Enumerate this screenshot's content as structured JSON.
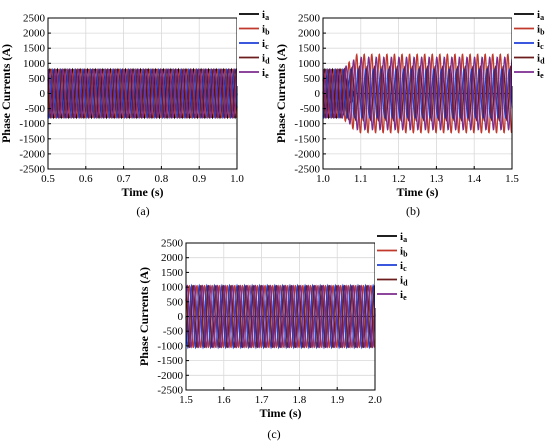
{
  "chart_data": [
    {
      "type": "line",
      "caption": "(a)",
      "xlabel": "Time (s)",
      "ylabel": "Phase Currents (A)",
      "xlim": [
        0.5,
        1.0
      ],
      "ylim": [
        -2500,
        2500
      ],
      "xticks": [
        "0.5",
        "0.6",
        "0.7",
        "0.8",
        "0.9",
        "1.0"
      ],
      "yticks": [
        "2500",
        "2000",
        "1500",
        "1000",
        "500",
        "0",
        "-500",
        "-1000",
        "-1500",
        "-2000",
        "-2500"
      ],
      "grid": true,
      "legend_position": "right",
      "frequency_hz": 50,
      "series": [
        {
          "name": "a",
          "color": "#000000",
          "amplitude": 800,
          "phase_deg": 0
        },
        {
          "name": "b",
          "color": "#c0392b",
          "amplitude": 800,
          "phase_deg": -72
        },
        {
          "name": "c",
          "color": "#1f3fd8",
          "amplitude": 800,
          "phase_deg": -144
        },
        {
          "name": "d",
          "color": "#6b1d1d",
          "amplitude": 800,
          "phase_deg": -216
        },
        {
          "name": "e",
          "color": "#7b2d8e",
          "amplitude": 800,
          "phase_deg": -288
        }
      ]
    },
    {
      "type": "line",
      "caption": "(b)",
      "xlabel": "Time (s)",
      "ylabel": "Phase Currents (A)",
      "xlim": [
        1.0,
        1.5
      ],
      "ylim": [
        -2500,
        2500
      ],
      "xticks": [
        "1.0",
        "1.1",
        "1.2",
        "1.3",
        "1.4",
        "1.5"
      ],
      "yticks": [
        "2500",
        "2000",
        "1500",
        "1000",
        "500",
        "0",
        "-500",
        "-1000",
        "-1500",
        "-2000",
        "-2500"
      ],
      "grid": true,
      "legend_position": "right",
      "frequency_hz": 50,
      "fault_time": 1.05,
      "series": [
        {
          "name": "a",
          "color": "#000000",
          "amplitude": 800,
          "amplitude_after_fault": 0,
          "phase_deg": 0
        },
        {
          "name": "b",
          "color": "#c0392b",
          "amplitude": 800,
          "amplitude_after_fault": 1300,
          "phase_deg": -72
        },
        {
          "name": "c",
          "color": "#1f3fd8",
          "amplitude": 800,
          "amplitude_after_fault": 800,
          "phase_deg": -144
        },
        {
          "name": "d",
          "color": "#6b1d1d",
          "amplitude": 800,
          "amplitude_after_fault": 900,
          "phase_deg": -216
        },
        {
          "name": "e",
          "color": "#7b2d8e",
          "amplitude": 800,
          "amplitude_after_fault": 1200,
          "phase_deg": -288
        }
      ]
    },
    {
      "type": "line",
      "caption": "(c)",
      "xlabel": "Time (s)",
      "ylabel": "Phase Currents (A)",
      "xlim": [
        1.5,
        2.0
      ],
      "ylim": [
        -2500,
        2500
      ],
      "xticks": [
        "1.5",
        "1.6",
        "1.7",
        "1.8",
        "1.9",
        "2.0"
      ],
      "yticks": [
        "2500",
        "2000",
        "1500",
        "1000",
        "500",
        "0",
        "-500",
        "-1000",
        "-1500",
        "-2000",
        "-2500"
      ],
      "grid": true,
      "legend_position": "right",
      "frequency_hz": 50,
      "series": [
        {
          "name": "a",
          "color": "#000000",
          "amplitude": 0,
          "phase_deg": 0
        },
        {
          "name": "b",
          "color": "#c0392b",
          "amplitude": 1050,
          "phase_deg": -72
        },
        {
          "name": "c",
          "color": "#1f3fd8",
          "amplitude": 1050,
          "phase_deg": -180
        },
        {
          "name": "d",
          "color": "#6b1d1d",
          "amplitude": 1050,
          "phase_deg": -252
        },
        {
          "name": "e",
          "color": "#7b2d8e",
          "amplitude": 1050,
          "phase_deg": -330
        }
      ]
    }
  ],
  "legend_prefix": "i"
}
